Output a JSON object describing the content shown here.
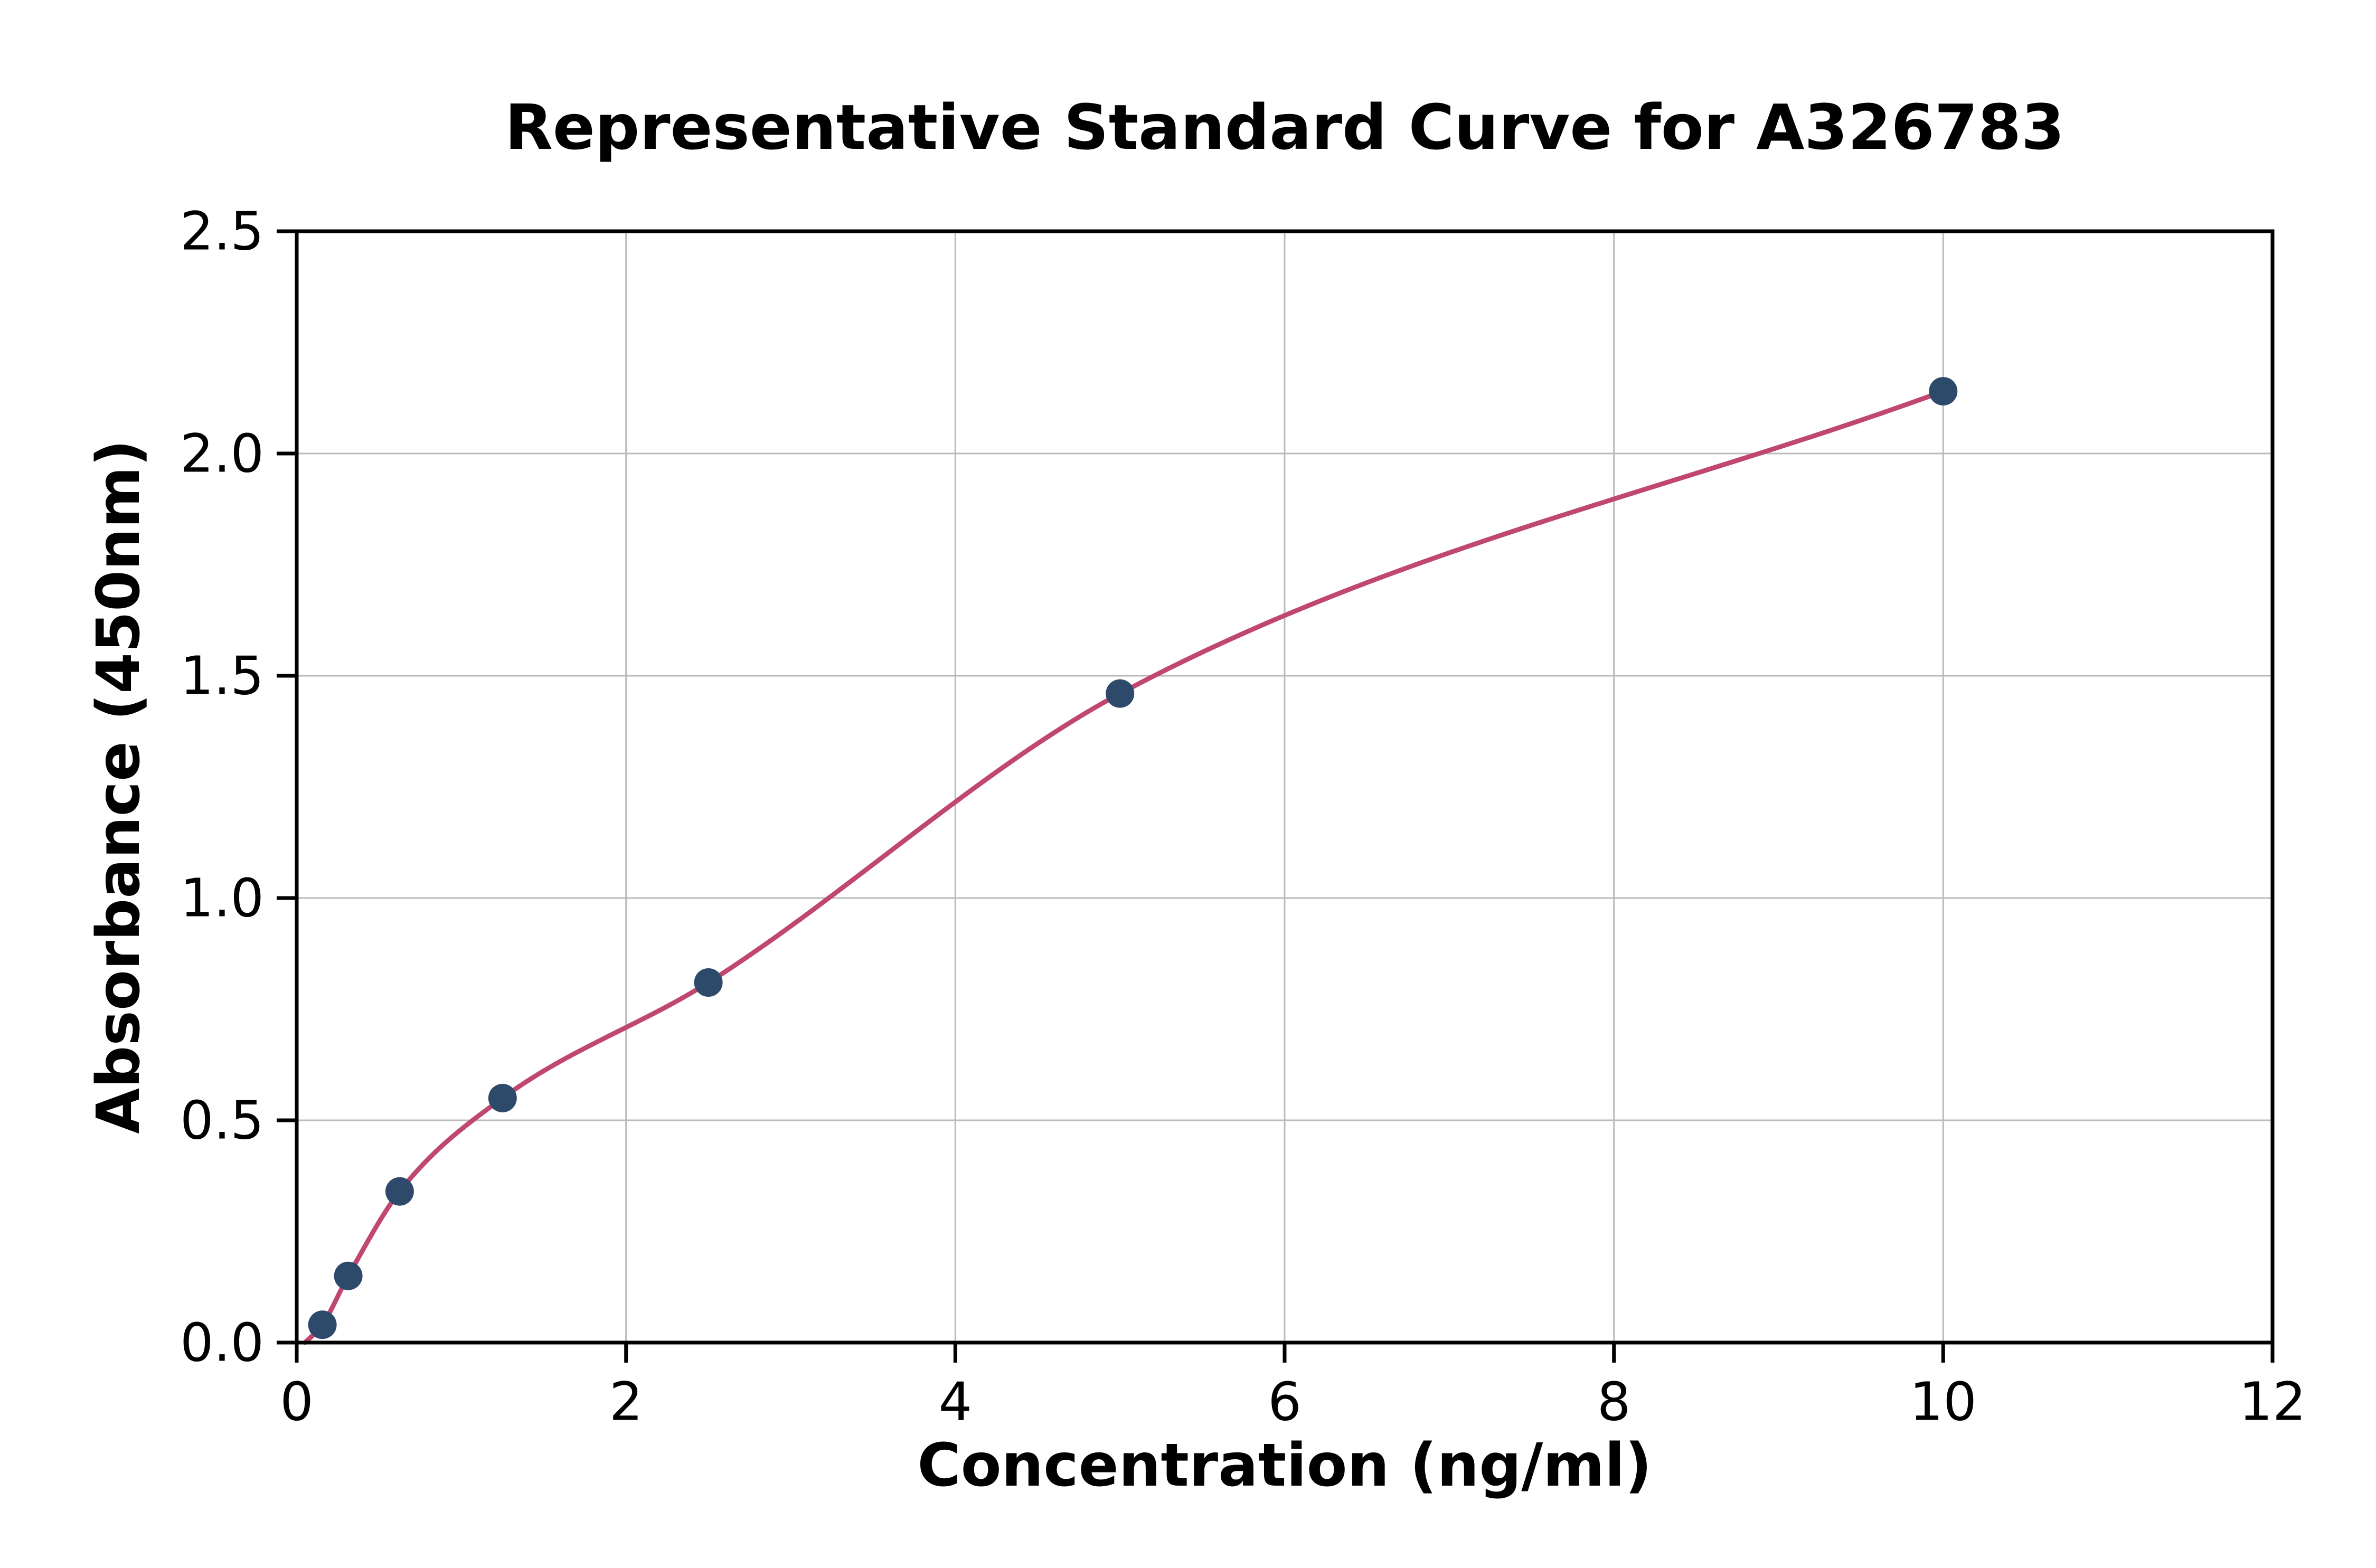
{
  "chart_data": {
    "type": "scatter",
    "title": "Representative Standard Curve for A326783",
    "xlabel": "Concentration (ng/ml)",
    "ylabel": "Absorbance (450nm)",
    "xlim": [
      0,
      12
    ],
    "ylim": [
      0,
      2.5
    ],
    "xticks": [
      0,
      2,
      4,
      6,
      8,
      10,
      12
    ],
    "xtick_labels": [
      "0",
      "2",
      "4",
      "6",
      "8",
      "10",
      "12"
    ],
    "yticks": [
      0.0,
      0.5,
      1.0,
      1.5,
      2.0,
      2.5
    ],
    "ytick_labels": [
      "0.0",
      "0.5",
      "1.0",
      "1.5",
      "2.0",
      "2.5"
    ],
    "grid": true,
    "legend": "none",
    "points": [
      {
        "x": 0.156,
        "y": 0.04
      },
      {
        "x": 0.313,
        "y": 0.15
      },
      {
        "x": 0.625,
        "y": 0.34
      },
      {
        "x": 1.25,
        "y": 0.55
      },
      {
        "x": 2.5,
        "y": 0.81
      },
      {
        "x": 5,
        "y": 1.46
      },
      {
        "x": 10,
        "y": 2.14
      }
    ],
    "curve_start": {
      "x": 0.05,
      "y": 0.0
    },
    "colors": {
      "curve": "#c0476f",
      "marker": "#2e4a6a",
      "grid": "#bbbbbb",
      "axis": "#000000",
      "background": "#ffffff"
    }
  }
}
